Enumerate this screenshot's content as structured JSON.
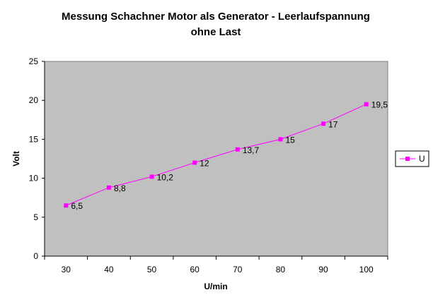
{
  "chart_data": {
    "type": "line",
    "title_lines": [
      "Messung Schachner Motor als Generator - Leerlaufspannung",
      "ohne Last"
    ],
    "xlabel": "U/min",
    "ylabel": "Volt",
    "categories": [
      "30",
      "40",
      "50",
      "60",
      "70",
      "80",
      "90",
      "100"
    ],
    "ylim": [
      0,
      25
    ],
    "y_ticks": [
      "0",
      "5",
      "10",
      "15",
      "20",
      "25"
    ],
    "grid": false,
    "legend_position": "right",
    "series": [
      {
        "name": "U",
        "color": "#ff00ff",
        "values": [
          6.5,
          8.8,
          10.2,
          12,
          13.7,
          15,
          17,
          19.5
        ],
        "data_labels": [
          "6,5",
          "8,8",
          "10,2",
          "12",
          "13,7",
          "15",
          "17",
          "19,5"
        ]
      }
    ],
    "plot_background": "#c0c0c0"
  }
}
